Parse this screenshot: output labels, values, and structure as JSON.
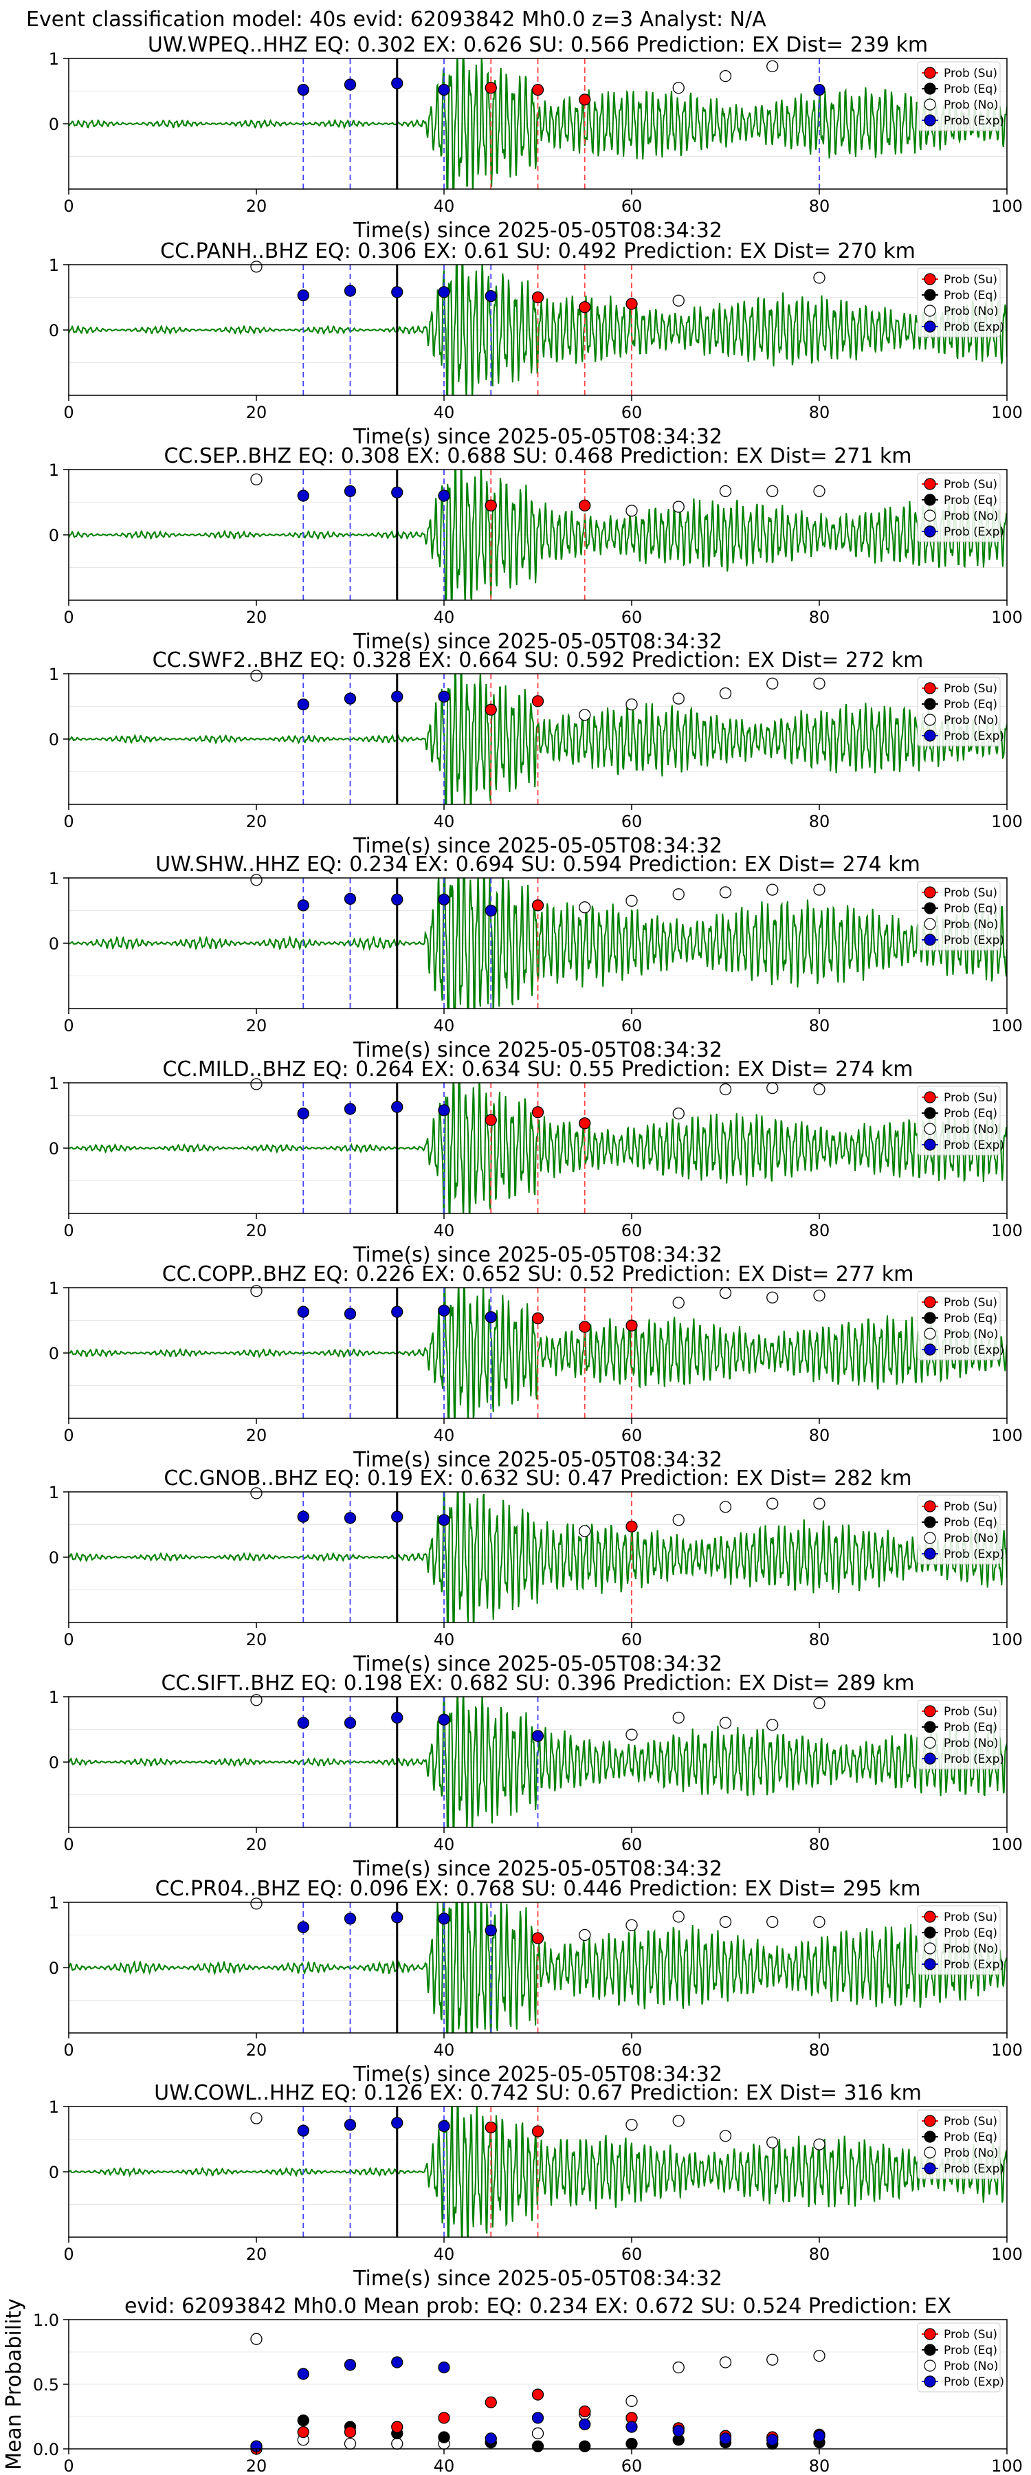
{
  "suptitle": "Event classification model: 40s evid: 62093842 Mh0.0 z=3 Analyst: N/A",
  "xlabel": "Time(s) since 2025-05-05T08:34:32",
  "legend_labels": [
    "Prob (Su)",
    "Prob (Eq)",
    "Prob (No)",
    "Prob (Exp)"
  ],
  "colors": {
    "su": "#ff0000",
    "eq": "#000000",
    "no": "#ffffff",
    "exp": "#0000cc",
    "wave": "#008000"
  },
  "xticks": [
    "0",
    "20",
    "40",
    "60",
    "80",
    "100"
  ],
  "yticks_station": [
    "1",
    "0"
  ],
  "chart_data": [
    {
      "type": "line",
      "title": "UW.WPEQ..HHZ   EQ: 0.302  EX: 0.626  SU: 0.566   Prediction: EX    Dist= 239 km",
      "xlim": [
        0,
        100
      ],
      "ylim": [
        -1,
        1
      ],
      "pick_line": 35,
      "blue_lines": [
        25,
        30,
        40,
        80
      ],
      "red_lines": [
        45,
        50,
        55
      ],
      "exp": [
        [
          25,
          0.52
        ],
        [
          30,
          0.6
        ],
        [
          35,
          0.62
        ],
        [
          40,
          0.52
        ],
        [
          80,
          0.52
        ]
      ],
      "su": [
        [
          45,
          0.55
        ],
        [
          50,
          0.52
        ],
        [
          55,
          0.37
        ]
      ],
      "no": [
        [
          65,
          0.55
        ],
        [
          70,
          0.73
        ],
        [
          75,
          0.88
        ]
      ]
    },
    {
      "type": "line",
      "title": "CC.PANH..BHZ   EQ: 0.306  EX: 0.61  SU: 0.492   Prediction: EX    Dist= 270 km",
      "xlim": [
        0,
        100
      ],
      "ylim": [
        -1,
        1
      ],
      "pick_line": 35,
      "blue_lines": [
        25,
        30,
        40,
        45
      ],
      "red_lines": [
        50,
        55,
        60
      ],
      "exp": [
        [
          25,
          0.53
        ],
        [
          30,
          0.6
        ],
        [
          35,
          0.58
        ],
        [
          40,
          0.58
        ],
        [
          45,
          0.52
        ]
      ],
      "su": [
        [
          50,
          0.5
        ],
        [
          55,
          0.35
        ],
        [
          60,
          0.4
        ]
      ],
      "no": [
        [
          20,
          0.97
        ],
        [
          65,
          0.45
        ],
        [
          80,
          0.8
        ]
      ]
    },
    {
      "type": "line",
      "title": "CC.SEP..BHZ   EQ: 0.308  EX: 0.688  SU: 0.468   Prediction: EX    Dist= 271 km",
      "xlim": [
        0,
        100
      ],
      "ylim": [
        -1,
        1
      ],
      "pick_line": 35,
      "blue_lines": [
        25,
        30,
        40
      ],
      "red_lines": [
        45,
        55
      ],
      "exp": [
        [
          25,
          0.6
        ],
        [
          30,
          0.67
        ],
        [
          35,
          0.65
        ],
        [
          40,
          0.6
        ]
      ],
      "su": [
        [
          45,
          0.45
        ],
        [
          55,
          0.45
        ]
      ],
      "no": [
        [
          20,
          0.85
        ],
        [
          60,
          0.37
        ],
        [
          65,
          0.43
        ],
        [
          70,
          0.67
        ],
        [
          75,
          0.67
        ],
        [
          80,
          0.67
        ]
      ]
    },
    {
      "type": "line",
      "title": "CC.SWF2..BHZ   EQ: 0.328  EX: 0.664  SU: 0.592   Prediction: EX    Dist= 272 km",
      "xlim": [
        0,
        100
      ],
      "ylim": [
        -1,
        1
      ],
      "pick_line": 35,
      "blue_lines": [
        25,
        30,
        40
      ],
      "red_lines": [
        45,
        50
      ],
      "exp": [
        [
          25,
          0.53
        ],
        [
          30,
          0.62
        ],
        [
          35,
          0.65
        ],
        [
          40,
          0.65
        ]
      ],
      "su": [
        [
          45,
          0.45
        ],
        [
          50,
          0.58
        ]
      ],
      "no": [
        [
          20,
          0.97
        ],
        [
          55,
          0.37
        ],
        [
          60,
          0.53
        ],
        [
          65,
          0.62
        ],
        [
          70,
          0.7
        ],
        [
          75,
          0.85
        ],
        [
          80,
          0.85
        ]
      ]
    },
    {
      "type": "line",
      "title": "UW.SHW..HHZ   EQ: 0.234  EX: 0.694  SU: 0.594   Prediction: EX    Dist= 274 km",
      "xlim": [
        0,
        100
      ],
      "ylim": [
        -1,
        1
      ],
      "pick_line": 35,
      "blue_lines": [
        25,
        30,
        40,
        45
      ],
      "red_lines": [
        50
      ],
      "exp": [
        [
          25,
          0.58
        ],
        [
          30,
          0.68
        ],
        [
          35,
          0.67
        ],
        [
          40,
          0.67
        ],
        [
          45,
          0.5
        ]
      ],
      "su": [
        [
          50,
          0.58
        ]
      ],
      "no": [
        [
          20,
          0.97
        ],
        [
          55,
          0.55
        ],
        [
          60,
          0.65
        ],
        [
          65,
          0.75
        ],
        [
          70,
          0.78
        ],
        [
          75,
          0.82
        ],
        [
          80,
          0.82
        ]
      ]
    },
    {
      "type": "line",
      "title": "CC.MILD..BHZ   EQ: 0.264  EX: 0.634  SU: 0.55   Prediction: EX    Dist= 274 km",
      "xlim": [
        0,
        100
      ],
      "ylim": [
        -1,
        1
      ],
      "pick_line": 35,
      "blue_lines": [
        25,
        30,
        40
      ],
      "red_lines": [
        45,
        50,
        55
      ],
      "exp": [
        [
          25,
          0.53
        ],
        [
          30,
          0.6
        ],
        [
          35,
          0.63
        ],
        [
          40,
          0.58
        ]
      ],
      "su": [
        [
          45,
          0.43
        ],
        [
          50,
          0.55
        ],
        [
          55,
          0.38
        ]
      ],
      "no": [
        [
          20,
          0.98
        ],
        [
          65,
          0.53
        ],
        [
          70,
          0.9
        ],
        [
          75,
          0.92
        ],
        [
          80,
          0.9
        ]
      ]
    },
    {
      "type": "line",
      "title": "CC.COPP..BHZ   EQ: 0.226  EX: 0.652  SU: 0.52   Prediction: EX    Dist= 277 km",
      "xlim": [
        0,
        100
      ],
      "ylim": [
        -1,
        1
      ],
      "pick_line": 35,
      "blue_lines": [
        25,
        30,
        40,
        45
      ],
      "red_lines": [
        50,
        55,
        60
      ],
      "exp": [
        [
          25,
          0.63
        ],
        [
          30,
          0.6
        ],
        [
          35,
          0.63
        ],
        [
          40,
          0.65
        ],
        [
          45,
          0.55
        ]
      ],
      "su": [
        [
          50,
          0.53
        ],
        [
          55,
          0.4
        ],
        [
          60,
          0.42
        ]
      ],
      "no": [
        [
          20,
          0.95
        ],
        [
          65,
          0.77
        ],
        [
          70,
          0.92
        ],
        [
          75,
          0.85
        ],
        [
          80,
          0.88
        ]
      ]
    },
    {
      "type": "line",
      "title": "CC.GNOB..BHZ   EQ: 0.19  EX: 0.632  SU: 0.47   Prediction: EX    Dist= 282 km",
      "xlim": [
        0,
        100
      ],
      "ylim": [
        -1,
        1
      ],
      "pick_line": 35,
      "blue_lines": [
        25,
        30,
        40
      ],
      "red_lines": [
        60
      ],
      "exp": [
        [
          25,
          0.62
        ],
        [
          30,
          0.6
        ],
        [
          35,
          0.62
        ],
        [
          40,
          0.57
        ]
      ],
      "su": [
        [
          60,
          0.47
        ]
      ],
      "no": [
        [
          20,
          0.98
        ],
        [
          55,
          0.4
        ],
        [
          65,
          0.57
        ],
        [
          70,
          0.77
        ],
        [
          75,
          0.82
        ],
        [
          80,
          0.82
        ]
      ]
    },
    {
      "type": "line",
      "title": "CC.SIFT..BHZ   EQ: 0.198  EX: 0.682  SU: 0.396   Prediction: EX    Dist= 289 km",
      "xlim": [
        0,
        100
      ],
      "ylim": [
        -1,
        1
      ],
      "pick_line": 35,
      "blue_lines": [
        25,
        30,
        40,
        50
      ],
      "red_lines": [],
      "exp": [
        [
          25,
          0.6
        ],
        [
          30,
          0.6
        ],
        [
          35,
          0.68
        ],
        [
          40,
          0.65
        ],
        [
          50,
          0.4
        ]
      ],
      "su": [],
      "no": [
        [
          20,
          0.95
        ],
        [
          60,
          0.42
        ],
        [
          65,
          0.68
        ],
        [
          70,
          0.6
        ],
        [
          75,
          0.57
        ],
        [
          80,
          0.9
        ]
      ]
    },
    {
      "type": "line",
      "title": "CC.PR04..BHZ   EQ: 0.096  EX: 0.768  SU: 0.446   Prediction: EX    Dist= 295 km",
      "xlim": [
        0,
        100
      ],
      "ylim": [
        -1,
        1
      ],
      "pick_line": 35,
      "blue_lines": [
        25,
        30,
        40,
        45
      ],
      "red_lines": [
        50
      ],
      "exp": [
        [
          25,
          0.62
        ],
        [
          30,
          0.75
        ],
        [
          35,
          0.77
        ],
        [
          40,
          0.75
        ],
        [
          45,
          0.57
        ]
      ],
      "su": [
        [
          50,
          0.45
        ]
      ],
      "no": [
        [
          20,
          0.98
        ],
        [
          55,
          0.5
        ],
        [
          60,
          0.65
        ],
        [
          65,
          0.78
        ],
        [
          70,
          0.7
        ],
        [
          75,
          0.7
        ],
        [
          80,
          0.7
        ]
      ]
    },
    {
      "type": "line",
      "title": "UW.COWL..HHZ   EQ: 0.126  EX: 0.742  SU: 0.67   Prediction: EX    Dist= 316 km",
      "xlim": [
        0,
        100
      ],
      "ylim": [
        -1,
        1
      ],
      "pick_line": 35,
      "blue_lines": [
        25,
        30,
        40
      ],
      "red_lines": [
        45,
        50
      ],
      "exp": [
        [
          25,
          0.63
        ],
        [
          30,
          0.72
        ],
        [
          35,
          0.75
        ],
        [
          40,
          0.7
        ]
      ],
      "su": [
        [
          45,
          0.68
        ],
        [
          50,
          0.62
        ]
      ],
      "no": [
        [
          20,
          0.82
        ],
        [
          60,
          0.72
        ],
        [
          65,
          0.78
        ],
        [
          70,
          0.55
        ],
        [
          75,
          0.45
        ],
        [
          80,
          0.42
        ]
      ]
    },
    {
      "type": "scatter",
      "title": "evid: 62093842  Mh0.0   Mean prob:   EQ: 0.234  EX: 0.672  SU: 0.524   Prediction: EX",
      "ylabel": "Mean Probability",
      "xlim": [
        0,
        100
      ],
      "ylim": [
        0,
        1
      ],
      "yticks": [
        "1.0",
        "0.5",
        "0.0"
      ],
      "su": [
        [
          20,
          0.0
        ],
        [
          25,
          0.13
        ],
        [
          30,
          0.13
        ],
        [
          35,
          0.17
        ],
        [
          40,
          0.24
        ],
        [
          45,
          0.36
        ],
        [
          50,
          0.42
        ],
        [
          55,
          0.29
        ],
        [
          60,
          0.24
        ],
        [
          65,
          0.16
        ],
        [
          70,
          0.1
        ],
        [
          75,
          0.09
        ],
        [
          80,
          0.11
        ]
      ],
      "eq": [
        [
          20,
          0.02
        ],
        [
          25,
          0.22
        ],
        [
          30,
          0.17
        ],
        [
          35,
          0.12
        ],
        [
          40,
          0.09
        ],
        [
          45,
          0.05
        ],
        [
          50,
          0.02
        ],
        [
          55,
          0.02
        ],
        [
          60,
          0.04
        ],
        [
          65,
          0.07
        ],
        [
          70,
          0.05
        ],
        [
          75,
          0.04
        ],
        [
          80,
          0.05
        ]
      ],
      "no": [
        [
          20,
          0.85
        ],
        [
          25,
          0.07
        ],
        [
          30,
          0.04
        ],
        [
          35,
          0.04
        ],
        [
          40,
          0.04
        ],
        [
          45,
          0.05
        ],
        [
          50,
          0.12
        ],
        [
          55,
          0.27
        ],
        [
          60,
          0.37
        ],
        [
          65,
          0.63
        ],
        [
          70,
          0.67
        ],
        [
          75,
          0.69
        ],
        [
          80,
          0.72
        ]
      ],
      "exp": [
        [
          20,
          0.02
        ],
        [
          25,
          0.58
        ],
        [
          30,
          0.65
        ],
        [
          35,
          0.67
        ],
        [
          40,
          0.63
        ],
        [
          45,
          0.08
        ],
        [
          50,
          0.24
        ],
        [
          55,
          0.19
        ],
        [
          60,
          0.17
        ],
        [
          65,
          0.14
        ],
        [
          70,
          0.08
        ],
        [
          75,
          0.07
        ],
        [
          80,
          0.1
        ]
      ]
    }
  ]
}
